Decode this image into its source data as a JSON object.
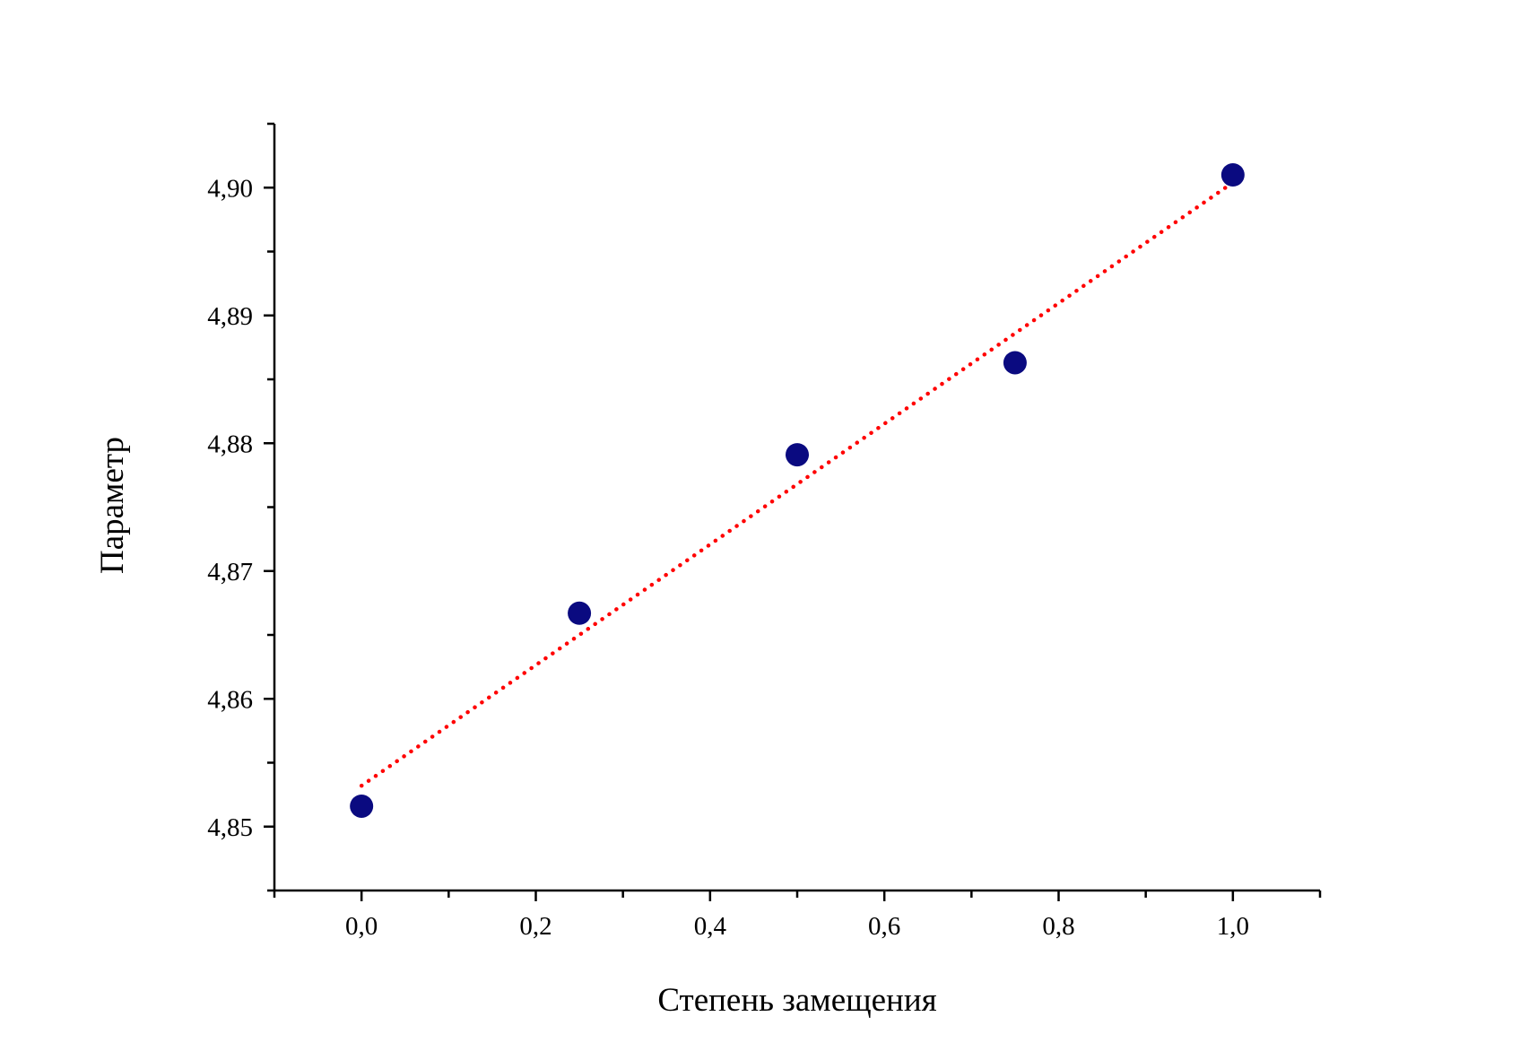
{
  "chart_data": {
    "type": "scatter",
    "xlabel": "Степень замещения",
    "ylabel": "Параметр",
    "xlim": [
      -0.1,
      1.1
    ],
    "ylim": [
      4.845,
      4.905
    ],
    "x_major_ticks": [
      0.0,
      0.2,
      0.4,
      0.6,
      0.8,
      1.0
    ],
    "x_tick_labels": [
      "0,0",
      "0,2",
      "0,4",
      "0,6",
      "0,8",
      "1,0"
    ],
    "x_minor_step": 0.1,
    "y_major_ticks": [
      4.85,
      4.86,
      4.87,
      4.88,
      4.89,
      4.9
    ],
    "y_tick_labels": [
      "4,85",
      "4,86",
      "4,87",
      "4,88",
      "4,89",
      "4,90"
    ],
    "y_minor_step": 0.005,
    "grid": false,
    "legend": "none",
    "series": [
      {
        "kind": "points",
        "color": "#0a0a80",
        "x": [
          0.0,
          0.25,
          0.5,
          0.75,
          1.0
        ],
        "y": [
          4.8516,
          4.8667,
          4.8791,
          4.8863,
          4.901
        ]
      },
      {
        "kind": "linear-fit",
        "color": "#ff0000",
        "style": "dotted",
        "x": [
          0.0,
          1.0
        ],
        "y": [
          4.8532,
          4.9004
        ]
      }
    ]
  }
}
